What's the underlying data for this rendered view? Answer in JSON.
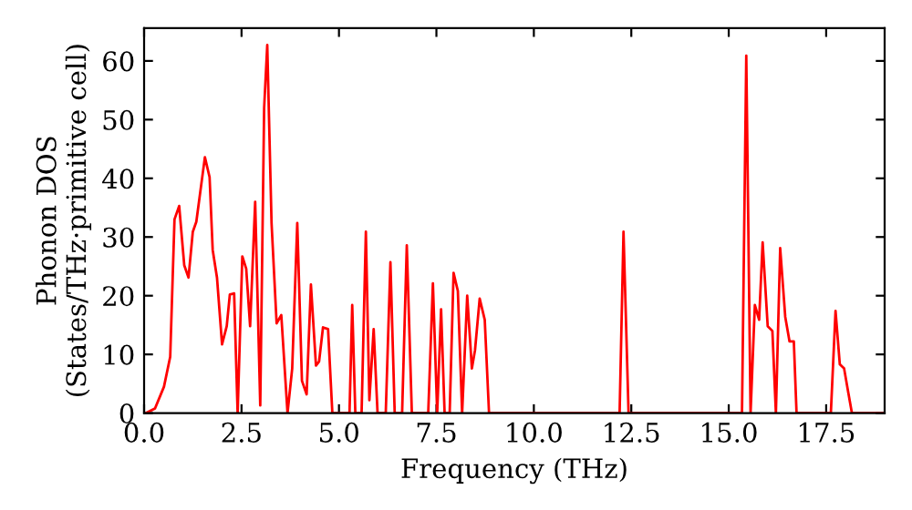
{
  "chart_data": {
    "type": "line",
    "xlabel": "Frequency (THz)",
    "ylabel": "Phonon DOS\n(States/THz·primitive cell)",
    "xlim": [
      0,
      19
    ],
    "ylim": [
      0,
      65.6
    ],
    "xticks": [
      {
        "value": 0,
        "label": "0.0"
      },
      {
        "value": 2.5,
        "label": "2.5"
      },
      {
        "value": 5,
        "label": "5.0"
      },
      {
        "value": 7.5,
        "label": "7.5"
      },
      {
        "value": 10,
        "label": "10.0"
      },
      {
        "value": 12.5,
        "label": "12.5"
      },
      {
        "value": 15,
        "label": "15.0"
      },
      {
        "value": 17.5,
        "label": "17.5"
      }
    ],
    "yticks": [
      0,
      10,
      20,
      30,
      40,
      50,
      60
    ],
    "grid": false,
    "legend": false,
    "marker": "none",
    "line_style": "solid",
    "series": [
      {
        "color": "#ff0000",
        "x": [
          0,
          0.05,
          0.28,
          0.51,
          0.67,
          0.78,
          0.9,
          1.03,
          1.14,
          1.25,
          1.34,
          1.56,
          1.68,
          1.76,
          1.87,
          2.0,
          2.12,
          2.2,
          2.31,
          2.4,
          2.52,
          2.62,
          2.72,
          2.85,
          2.98,
          3.08,
          3.16,
          3.27,
          3.4,
          3.52,
          3.68,
          3.8,
          3.93,
          4.05,
          4.17,
          4.28,
          4.41,
          4.49,
          4.59,
          4.72,
          4.83,
          5.27,
          5.34,
          5.42,
          5.58,
          5.69,
          5.78,
          5.89,
          5.99,
          6.2,
          6.32,
          6.43,
          6.62,
          6.74,
          6.87,
          7.29,
          7.41,
          7.52,
          7.62,
          7.71,
          7.84,
          7.94,
          8.05,
          8.16,
          8.29,
          8.41,
          8.49,
          8.61,
          8.74,
          8.85,
          12.2,
          12.3,
          12.43,
          15.34,
          15.45,
          15.56,
          15.67,
          15.78,
          15.87,
          16.0,
          16.12,
          16.21,
          16.32,
          16.45,
          16.56,
          16.67,
          16.74,
          17.62,
          17.74,
          17.85,
          17.96,
          18.07,
          18.16,
          19
        ],
        "values": [
          0,
          0,
          0.8,
          4.5,
          9.6,
          33,
          35.3,
          25.2,
          23.1,
          30.9,
          32.6,
          43.6,
          40.2,
          27.8,
          23.1,
          11.7,
          14.8,
          20.2,
          20.4,
          0,
          26.7,
          24.6,
          14.8,
          36,
          1.3,
          52,
          62.7,
          32.4,
          15.3,
          16.7,
          0,
          7.6,
          32.4,
          5.5,
          3.2,
          21.9,
          8.1,
          8.8,
          14.6,
          14.3,
          0,
          0,
          18.4,
          0,
          0,
          30.9,
          2.2,
          14.3,
          0,
          0,
          25.7,
          0,
          0,
          28.6,
          0,
          0,
          22.1,
          0,
          17.7,
          0,
          0,
          23.9,
          20.8,
          0,
          20,
          7.6,
          10.7,
          19.5,
          15.9,
          0,
          0,
          30.9,
          0,
          0,
          60.9,
          0,
          18.4,
          15.9,
          29.1,
          14.8,
          14,
          0,
          28.1,
          16.4,
          12.2,
          12.2,
          0,
          0,
          17.4,
          8.3,
          7.6,
          3.4,
          0,
          0
        ]
      }
    ]
  }
}
